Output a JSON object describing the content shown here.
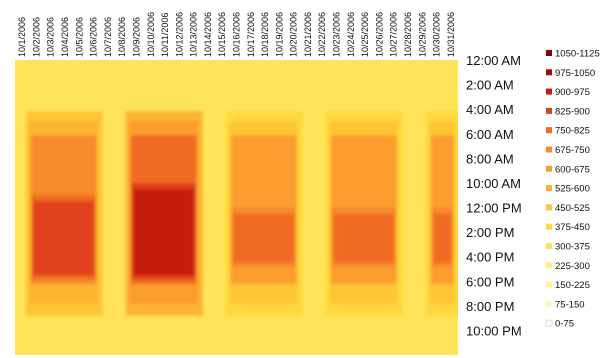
{
  "chart_data": {
    "type": "heatmap",
    "x_categories": [
      "10/1/2006",
      "10/2/2006",
      "10/3/2006",
      "10/4/2006",
      "10/5/2006",
      "10/6/2006",
      "10/7/2006",
      "10/8/2006",
      "10/9/2006",
      "10/10/2006",
      "10/11/2006",
      "10/12/2006",
      "10/13/2006",
      "10/14/2006",
      "10/15/2006",
      "10/16/2006",
      "10/17/2006",
      "10/18/2006",
      "10/19/2006",
      "10/20/2006",
      "10/21/2006",
      "10/22/2006",
      "10/23/2006",
      "10/24/2006",
      "10/25/2006",
      "10/26/2006",
      "10/27/2006",
      "10/28/2006",
      "10/29/2006",
      "10/30/2006",
      "10/31/2006"
    ],
    "y_tick_labels": [
      "12:00 AM",
      "2:00 AM",
      "4:00 AM",
      "6:00 AM",
      "8:00 AM",
      "10:00 AM",
      "12:00 PM",
      "2:00 PM",
      "4:00 PM",
      "6:00 PM",
      "8:00 PM",
      "10:00 PM"
    ],
    "y_range_hours": [
      0,
      24
    ],
    "legend_position": "right",
    "grid": false,
    "legend": [
      {
        "label": "1050-1125",
        "color": "#8b0000"
      },
      {
        "label": "975-1050",
        "color": "#a50a0a"
      },
      {
        "label": "900-975",
        "color": "#c41a10"
      },
      {
        "label": "825-900",
        "color": "#e0401a"
      },
      {
        "label": "750-825",
        "color": "#ef6a22"
      },
      {
        "label": "675-750",
        "color": "#f78a2a"
      },
      {
        "label": "600-675",
        "color": "#fb9d2e"
      },
      {
        "label": "525-600",
        "color": "#fdb431"
      },
      {
        "label": "450-525",
        "color": "#fec635"
      },
      {
        "label": "375-450",
        "color": "#ffd83c"
      },
      {
        "label": "300-375",
        "color": "#ffe45a"
      },
      {
        "label": "225-300",
        "color": "#ffed7d"
      },
      {
        "label": "150-225",
        "color": "#fff29a"
      },
      {
        "label": "75-150",
        "color": "#fff7bf"
      },
      {
        "label": "0-75",
        "color": "#ffffff"
      }
    ],
    "background_range": "300-375",
    "weekday_blocks": [
      {
        "days": [
          "10/2/2006",
          "10/3/2006",
          "10/4/2006",
          "10/5/2006",
          "10/6/2006"
        ],
        "occupied_hours": [
          4.5,
          20.5
        ],
        "peak_hours": [
          11.5,
          17.5
        ],
        "peak_range": "825-900"
      },
      {
        "days": [
          "10/9/2006",
          "10/10/2006",
          "10/11/2006",
          "10/12/2006",
          "10/13/2006"
        ],
        "occupied_hours": [
          4.5,
          20.5
        ],
        "peak_hours": [
          10.5,
          17.5
        ],
        "peak_range": "900-975"
      },
      {
        "days": [
          "10/16/2006",
          "10/17/2006",
          "10/18/2006",
          "10/19/2006",
          "10/20/2006"
        ],
        "occupied_hours": [
          4.5,
          20.5
        ],
        "peak_hours": [
          12.5,
          16.5
        ],
        "peak_range": "750-825"
      },
      {
        "days": [
          "10/23/2006",
          "10/24/2006",
          "10/25/2006",
          "10/26/2006",
          "10/27/2006"
        ],
        "occupied_hours": [
          4.5,
          20.5
        ],
        "peak_hours": [
          12.5,
          16.5
        ],
        "peak_range": "750-825"
      },
      {
        "days": [
          "10/30/2006",
          "10/31/2006"
        ],
        "occupied_hours": [
          4.5,
          20.5
        ],
        "peak_hours": [
          12.5,
          16.5
        ],
        "peak_range": "750-825"
      }
    ]
  }
}
